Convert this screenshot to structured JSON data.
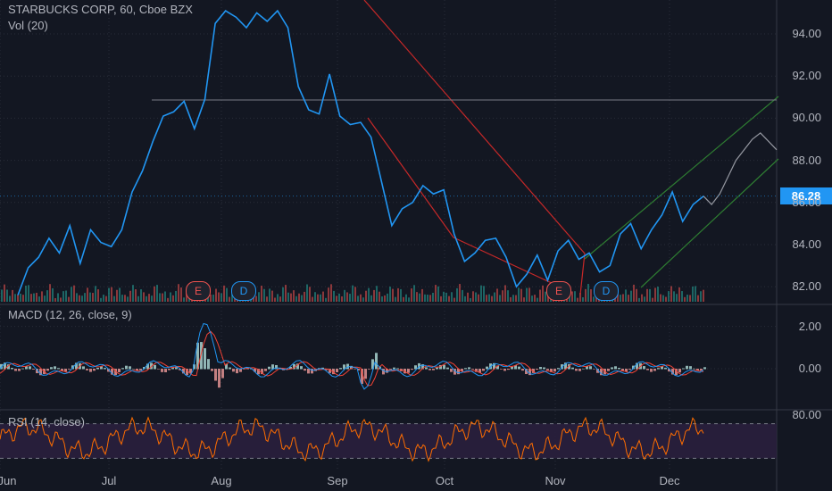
{
  "header": {
    "title": "STARBUCKS CORP, 60, Cboe BZX",
    "volume_label": "Vol (20)",
    "macd_label": "MACD (12, 26, close, 9)",
    "rsi_label": "RSI (14, close)"
  },
  "price_tag": {
    "value": "86.28",
    "color": "#2196f3"
  },
  "colors": {
    "price_line": "#2196f3",
    "channel_red": "#c62828",
    "channel_green": "#2e7d32",
    "macd": "#2196f3",
    "signal": "#f44336",
    "rsi": "#ff6d00",
    "rsi_band": "#2a1f3d"
  },
  "events": [
    {
      "label": "E",
      "type": "earnings"
    },
    {
      "label": "D",
      "type": "dividend"
    },
    {
      "label": "E",
      "type": "earnings"
    },
    {
      "label": "D",
      "type": "dividend"
    }
  ],
  "chart_data": [
    {
      "type": "line",
      "title": "STARBUCKS CORP, 60, Cboe BZX",
      "x_labels": [
        "Jun",
        "Jul",
        "Aug",
        "Sep",
        "Oct",
        "Nov",
        "Dec"
      ],
      "y_ticks": [
        "82.00",
        "84.00",
        "86.00",
        "88.00",
        "90.00",
        "92.00",
        "94.00"
      ],
      "ylim": [
        81.2,
        95.4
      ],
      "series": [
        {
          "values": [
            81.6,
            82.9,
            83.4,
            84.3,
            83.6,
            84.9,
            83.1,
            84.7,
            84.1,
            83.9,
            84.7,
            86.5,
            87.5,
            88.9,
            90.1,
            90.3,
            90.8,
            89.5,
            90.9,
            94.5,
            95.1,
            94.8,
            94.3,
            95.0,
            94.6,
            95.1,
            94.3,
            91.5,
            90.4,
            90.2,
            92.1,
            90.1,
            89.7,
            89.8,
            89.1,
            87.0,
            84.9,
            85.7,
            86.0,
            86.8,
            86.4,
            86.6,
            84.5,
            83.2,
            83.6,
            84.2,
            84.3,
            83.4,
            82.0,
            82.6,
            83.5,
            82.3,
            83.7,
            84.2,
            83.3,
            83.6,
            82.7,
            83.0,
            84.5,
            85.0,
            83.8,
            84.7,
            85.4,
            86.5,
            85.1,
            85.9,
            86.3
          ]
        },
        {
          "name": "projection",
          "values": [
            86.3,
            85.9,
            86.4,
            87.2,
            88.0,
            88.5,
            89.0,
            89.3,
            88.9,
            88.5
          ]
        }
      ]
    },
    {
      "type": "bar",
      "title": "Vol (20)"
    },
    {
      "type": "line",
      "title": "MACD (12, 26, close, 9)",
      "y_ticks": [
        "0.00",
        "2.00"
      ],
      "ylim": [
        -1.9,
        3.0
      ]
    },
    {
      "type": "line",
      "title": "RSI (14, close)",
      "y_ticks": [
        "80.00"
      ],
      "ylim": [
        15,
        85
      ],
      "bands": [
        70,
        30
      ]
    }
  ]
}
